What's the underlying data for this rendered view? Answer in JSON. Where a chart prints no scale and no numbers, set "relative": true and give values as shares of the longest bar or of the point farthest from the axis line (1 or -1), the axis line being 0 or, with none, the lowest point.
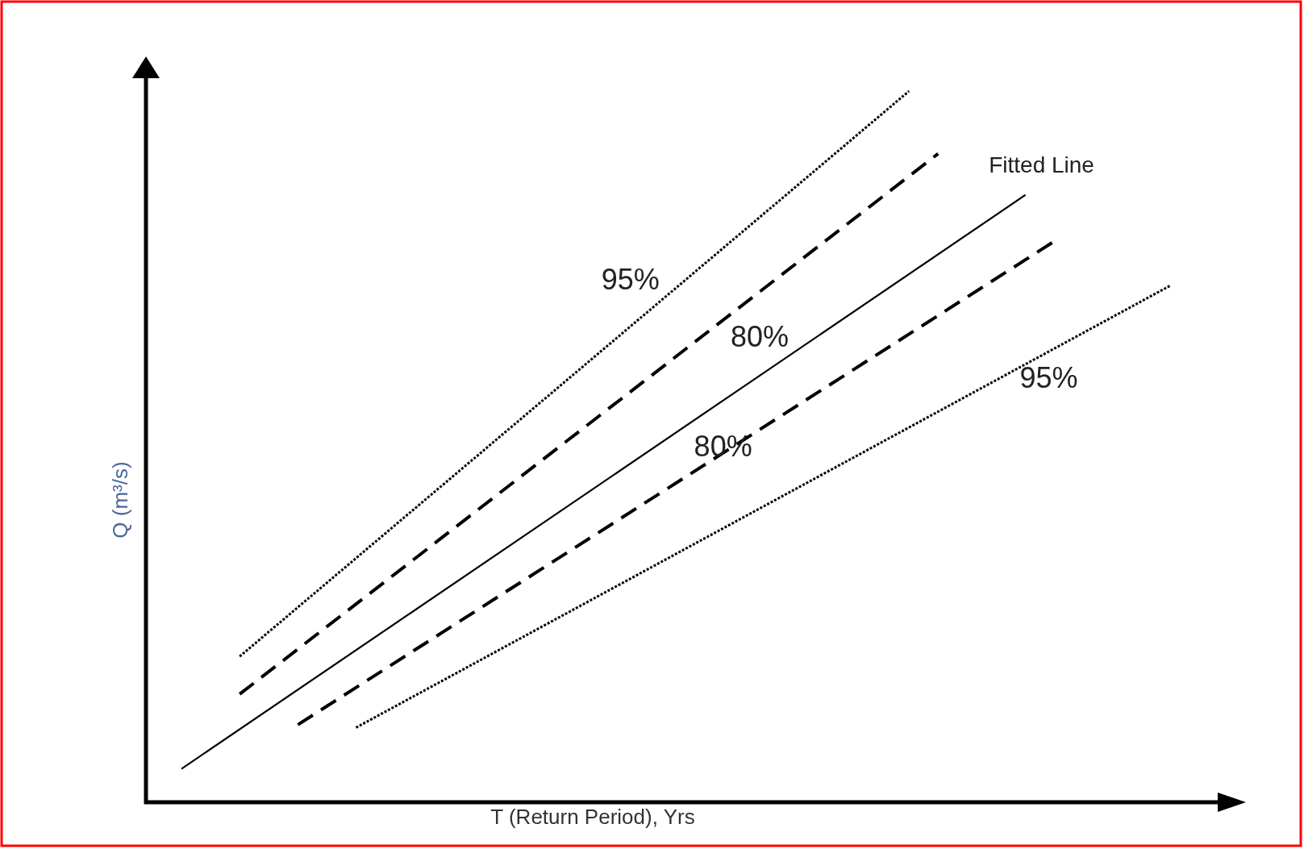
{
  "chart_data": {
    "type": "line",
    "relative": true,
    "xlabel": "T (Return Period), Yrs",
    "ylabel": "Q (m³/s)",
    "tick_labels": false,
    "categories": [
      null,
      null,
      null,
      null,
      null,
      null,
      null,
      null,
      null,
      null,
      null,
      null,
      null,
      null,
      null,
      null,
      null,
      null,
      null,
      null,
      null,
      null,
      null,
      null,
      null,
      null,
      null,
      null,
      null,
      null,
      null,
      null,
      null,
      null,
      null
    ],
    "series": [
      {
        "name": "95%",
        "color": "#000000",
        "line_style": "dotted",
        "values": [
          null,
          null,
          0.205,
          null,
          null,
          null,
          null,
          null,
          null,
          null,
          null,
          null,
          null,
          null,
          null,
          null,
          null,
          null,
          null,
          null,
          null,
          null,
          null,
          null,
          null,
          1,
          null,
          null,
          null,
          null,
          null,
          null,
          null,
          null,
          null
        ]
      },
      {
        "name": "80%",
        "color": "#000000",
        "line_style": "dashed",
        "values": [
          null,
          null,
          0.152,
          null,
          null,
          null,
          null,
          null,
          null,
          null,
          null,
          null,
          null,
          null,
          null,
          null,
          null,
          null,
          null,
          null,
          null,
          null,
          null,
          null,
          null,
          null,
          0.912,
          null,
          null,
          null,
          null,
          null,
          null,
          null,
          null
        ]
      },
      {
        "name": "Fitted Line",
        "color": "#000000",
        "line_style": "solid",
        "values": [
          0.047,
          null,
          null,
          null,
          null,
          null,
          null,
          null,
          null,
          null,
          null,
          null,
          null,
          null,
          null,
          null,
          null,
          null,
          null,
          null,
          null,
          null,
          null,
          null,
          null,
          null,
          null,
          null,
          null,
          0.854,
          null,
          null,
          null,
          null,
          null
        ]
      },
      {
        "name": "80%",
        "color": "#000000",
        "line_style": "dashed",
        "values": [
          null,
          null,
          null,
          null,
          0.109,
          null,
          null,
          null,
          null,
          null,
          null,
          null,
          null,
          null,
          null,
          null,
          null,
          null,
          null,
          null,
          null,
          null,
          null,
          null,
          null,
          null,
          null,
          null,
          null,
          null,
          0.789,
          null,
          null,
          null,
          null
        ]
      },
      {
        "name": "95%",
        "color": "#000000",
        "line_style": "dotted",
        "values": [
          null,
          null,
          null,
          null,
          null,
          null,
          0.105,
          null,
          null,
          null,
          null,
          null,
          null,
          null,
          null,
          null,
          null,
          null,
          null,
          null,
          null,
          null,
          null,
          null,
          null,
          null,
          null,
          null,
          null,
          null,
          null,
          null,
          null,
          null,
          0.727
        ]
      }
    ]
  }
}
